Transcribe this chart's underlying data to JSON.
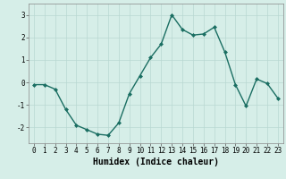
{
  "x": [
    0,
    1,
    2,
    3,
    4,
    5,
    6,
    7,
    8,
    9,
    10,
    11,
    12,
    13,
    14,
    15,
    16,
    17,
    18,
    19,
    20,
    21,
    22,
    23
  ],
  "y": [
    -0.1,
    -0.1,
    -0.3,
    -1.2,
    -1.9,
    -2.1,
    -2.3,
    -2.35,
    -1.8,
    -0.5,
    0.3,
    1.1,
    1.7,
    3.0,
    2.35,
    2.1,
    2.15,
    2.45,
    1.35,
    -0.1,
    -1.05,
    0.15,
    -0.05,
    -0.7
  ],
  "line_color": "#1a6e62",
  "marker": "D",
  "marker_size": 2.0,
  "bg_color": "#d6eee8",
  "grid_color": "#b8d8d2",
  "xlabel": "Humidex (Indice chaleur)",
  "xlim": [
    -0.5,
    23.5
  ],
  "ylim": [
    -2.7,
    3.5
  ],
  "yticks": [
    -2,
    -1,
    0,
    1,
    2,
    3
  ],
  "xticks": [
    0,
    1,
    2,
    3,
    4,
    5,
    6,
    7,
    8,
    9,
    10,
    11,
    12,
    13,
    14,
    15,
    16,
    17,
    18,
    19,
    20,
    21,
    22,
    23
  ],
  "tick_fontsize": 5.5,
  "xlabel_fontsize": 7.0,
  "linewidth": 1.0
}
